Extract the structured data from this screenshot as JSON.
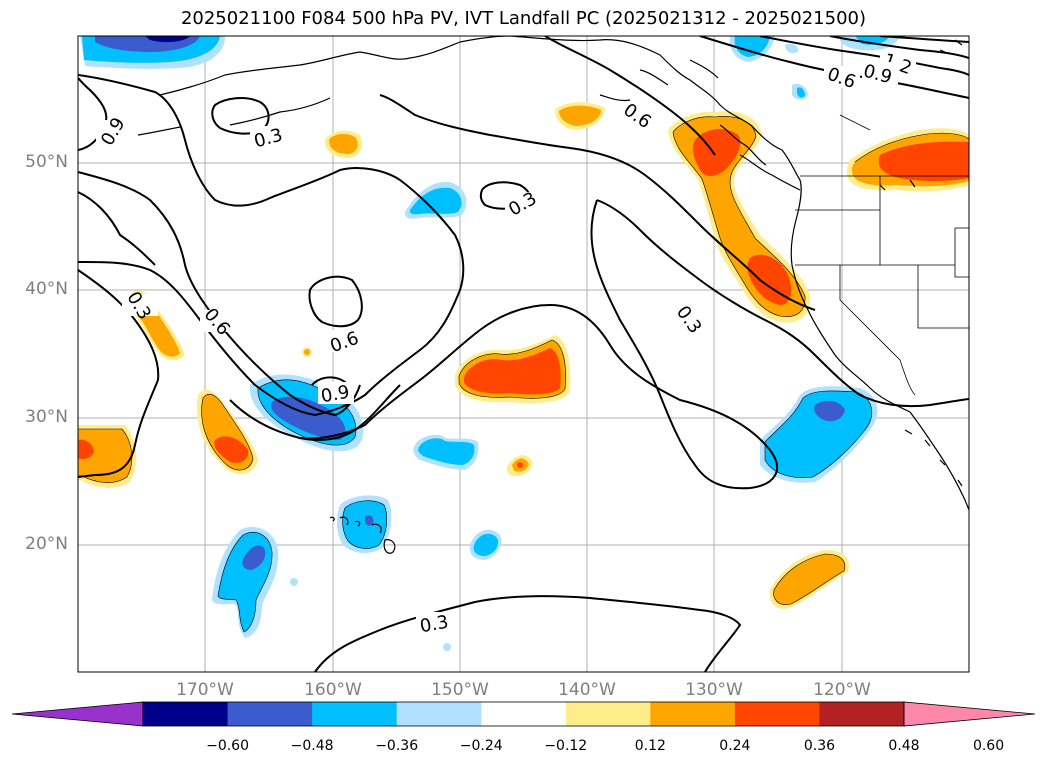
{
  "title": "2025021100 F084 500 hPa PV, IVT Landfall PC (2025021312 - 2025021500)",
  "lon_labels": [
    "170°W",
    "160°W",
    "150°W",
    "140°W",
    "130°W",
    "120°W"
  ],
  "lat_labels": [
    "50°N",
    "40°N",
    "30°N",
    "20°N"
  ],
  "contour_labels": [
    "0.9",
    "0.3",
    "0.3",
    "0.6",
    "0.6",
    "0.9",
    "1.2",
    "0.6",
    "0.3",
    "0.6",
    "0.9",
    "0.3",
    "0.3"
  ],
  "colorbar": {
    "ticks": [
      "−0.60",
      "−0.48",
      "−0.36",
      "−0.24",
      "−0.12",
      "0.12",
      "0.24",
      "0.36",
      "0.48",
      "0.60"
    ],
    "colors": [
      "#9932cc",
      "#00008b",
      "#3a5ccc",
      "#00bfff",
      "#b0e2ff",
      "#ffffff",
      "#ffec8b",
      "#ffa500",
      "#ff4500",
      "#b22222",
      "#ff88aa"
    ]
  }
}
